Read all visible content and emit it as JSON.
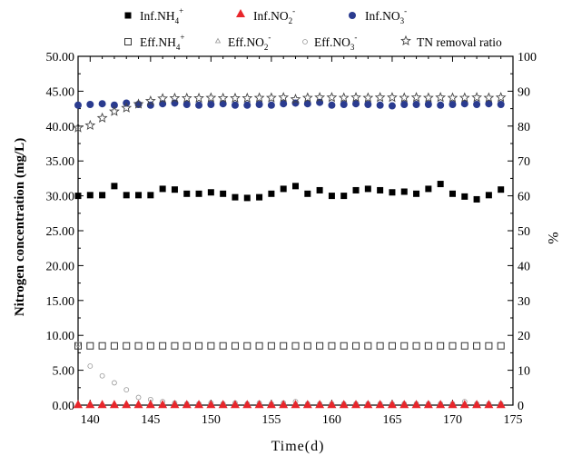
{
  "chart_data": {
    "type": "scatter",
    "xlabel": "Time(d)",
    "ylabel": "Nitrogen concentration (mg/L)",
    "y2label": "%",
    "xlim": [
      139,
      175
    ],
    "ylim": [
      0,
      50
    ],
    "y2lim": [
      0,
      100
    ],
    "x_ticks": [
      140,
      145,
      150,
      155,
      160,
      165,
      170,
      175
    ],
    "y_ticks": [
      0,
      5,
      10,
      15,
      20,
      25,
      30,
      35,
      40,
      45,
      50
    ],
    "y_tick_labels": [
      "0.00",
      "5.00",
      "10.00",
      "15.00",
      "20.00",
      "25.00",
      "30.00",
      "35.00",
      "40.00",
      "45.00",
      "50.00"
    ],
    "y2_ticks": [
      0,
      10,
      20,
      30,
      40,
      50,
      60,
      70,
      80,
      90,
      100
    ],
    "legend_placement": "top",
    "x": [
      139,
      140,
      141,
      142,
      143,
      144,
      145,
      146,
      147,
      148,
      149,
      150,
      151,
      152,
      153,
      154,
      155,
      156,
      157,
      158,
      159,
      160,
      161,
      162,
      163,
      164,
      165,
      166,
      167,
      168,
      169,
      170,
      171,
      172,
      173,
      174
    ],
    "series": [
      {
        "name": "Inf.NH4+",
        "legend": {
          "base": "Inf.NH",
          "sub": "4",
          "sup": "+"
        },
        "marker": "square-filled",
        "axis": "left",
        "values": [
          30.0,
          30.1,
          30.1,
          31.4,
          30.1,
          30.1,
          30.1,
          31.0,
          30.9,
          30.3,
          30.3,
          30.5,
          30.3,
          29.8,
          29.7,
          29.8,
          30.3,
          31.0,
          31.4,
          30.3,
          30.8,
          30.0,
          30.0,
          30.8,
          31.0,
          30.8,
          30.5,
          30.6,
          30.3,
          31.0,
          31.7,
          30.3,
          29.9,
          29.5,
          30.1,
          30.9
        ]
      },
      {
        "name": "Inf.NO2-",
        "legend": {
          "base": "Inf.NO",
          "sub": "2",
          "sup": "-"
        },
        "marker": "triangle-filled",
        "axis": "left",
        "values": [
          0.1,
          0.1,
          0.1,
          0.1,
          0.1,
          0.1,
          0.1,
          0.1,
          0.1,
          0.1,
          0.1,
          0.1,
          0.1,
          0.1,
          0.1,
          0.1,
          0.1,
          0.1,
          0.1,
          0.1,
          0.1,
          0.1,
          0.1,
          0.1,
          0.1,
          0.1,
          0.1,
          0.1,
          0.1,
          0.1,
          0.1,
          0.1,
          0.1,
          0.1,
          0.1,
          0.1
        ]
      },
      {
        "name": "Inf.NO3-",
        "legend": {
          "base": "Inf.NO",
          "sub": "3",
          "sup": "-"
        },
        "marker": "circle-filled",
        "axis": "left",
        "values": [
          43.0,
          43.1,
          43.2,
          43.0,
          43.3,
          43.1,
          43.0,
          43.2,
          43.3,
          43.1,
          43.0,
          43.1,
          43.2,
          43.0,
          43.0,
          43.1,
          43.0,
          43.2,
          43.3,
          43.2,
          43.4,
          43.0,
          43.1,
          43.2,
          43.1,
          43.0,
          42.9,
          43.1,
          43.1,
          43.1,
          43.0,
          43.1,
          43.2,
          43.1,
          43.2,
          43.1
        ]
      },
      {
        "name": "Eff.NH4+",
        "legend": {
          "base": "Eff.NH",
          "sub": "4",
          "sup": "+"
        },
        "marker": "square-open",
        "axis": "left",
        "values": [
          8.5,
          8.5,
          8.5,
          8.5,
          8.5,
          8.5,
          8.5,
          8.5,
          8.5,
          8.5,
          8.5,
          8.5,
          8.5,
          8.5,
          8.5,
          8.5,
          8.5,
          8.5,
          8.5,
          8.5,
          8.5,
          8.5,
          8.5,
          8.5,
          8.5,
          8.5,
          8.5,
          8.5,
          8.5,
          8.5,
          8.5,
          8.5,
          8.5,
          8.5,
          8.5,
          8.5
        ]
      },
      {
        "name": "Eff.NO2-",
        "legend": {
          "base": "Eff.NO",
          "sub": "2",
          "sup": "-"
        },
        "marker": "triangle-open-small",
        "axis": "left",
        "values": [
          0.3,
          0.3,
          0.3,
          0.3,
          0.3,
          0.3,
          0.3,
          0.3,
          0.3,
          0.3,
          0.3,
          0.3,
          0.3,
          0.3,
          0.3,
          0.3,
          0.3,
          0.3,
          0.3,
          0.3,
          0.3,
          0.3,
          0.3,
          0.3,
          0.3,
          0.3,
          0.3,
          0.3,
          0.3,
          0.3,
          0.3,
          0.3,
          0.3,
          0.3,
          0.3,
          0.3
        ]
      },
      {
        "name": "Eff.NO3-",
        "legend": {
          "base": "Eff.NO",
          "sub": "3",
          "sup": "-"
        },
        "marker": "circle-open-small",
        "axis": "left",
        "values": [
          8.7,
          5.6,
          4.2,
          3.2,
          2.2,
          1.1,
          0.8,
          0.5,
          0.3,
          0.2,
          0.2,
          0.3,
          0.2,
          0.3,
          0.2,
          0.3,
          0.2,
          0.3,
          0.5,
          0.2,
          0.2,
          0.2,
          0.2,
          0.2,
          0.2,
          0.2,
          0.2,
          0.2,
          0.2,
          0.2,
          0.2,
          0.2,
          0.5,
          0.2,
          0.2,
          0.2
        ]
      },
      {
        "name": "TN removal ratio",
        "legend": {
          "base": "TN removal ratio",
          "sub": "",
          "sup": ""
        },
        "marker": "star-open",
        "axis": "right",
        "values": [
          79.5,
          80.2,
          82.3,
          84.2,
          85.2,
          86.3,
          87.2,
          87.9,
          88.0,
          88.0,
          88.0,
          88.1,
          88.0,
          88.0,
          88.0,
          88.1,
          88.1,
          88.2,
          87.7,
          88.1,
          88.2,
          88.2,
          88.1,
          88.2,
          88.1,
          88.2,
          88.2,
          88.1,
          88.2,
          88.1,
          88.2,
          88.1,
          88.1,
          88.2,
          88.1,
          88.2
        ]
      }
    ]
  }
}
